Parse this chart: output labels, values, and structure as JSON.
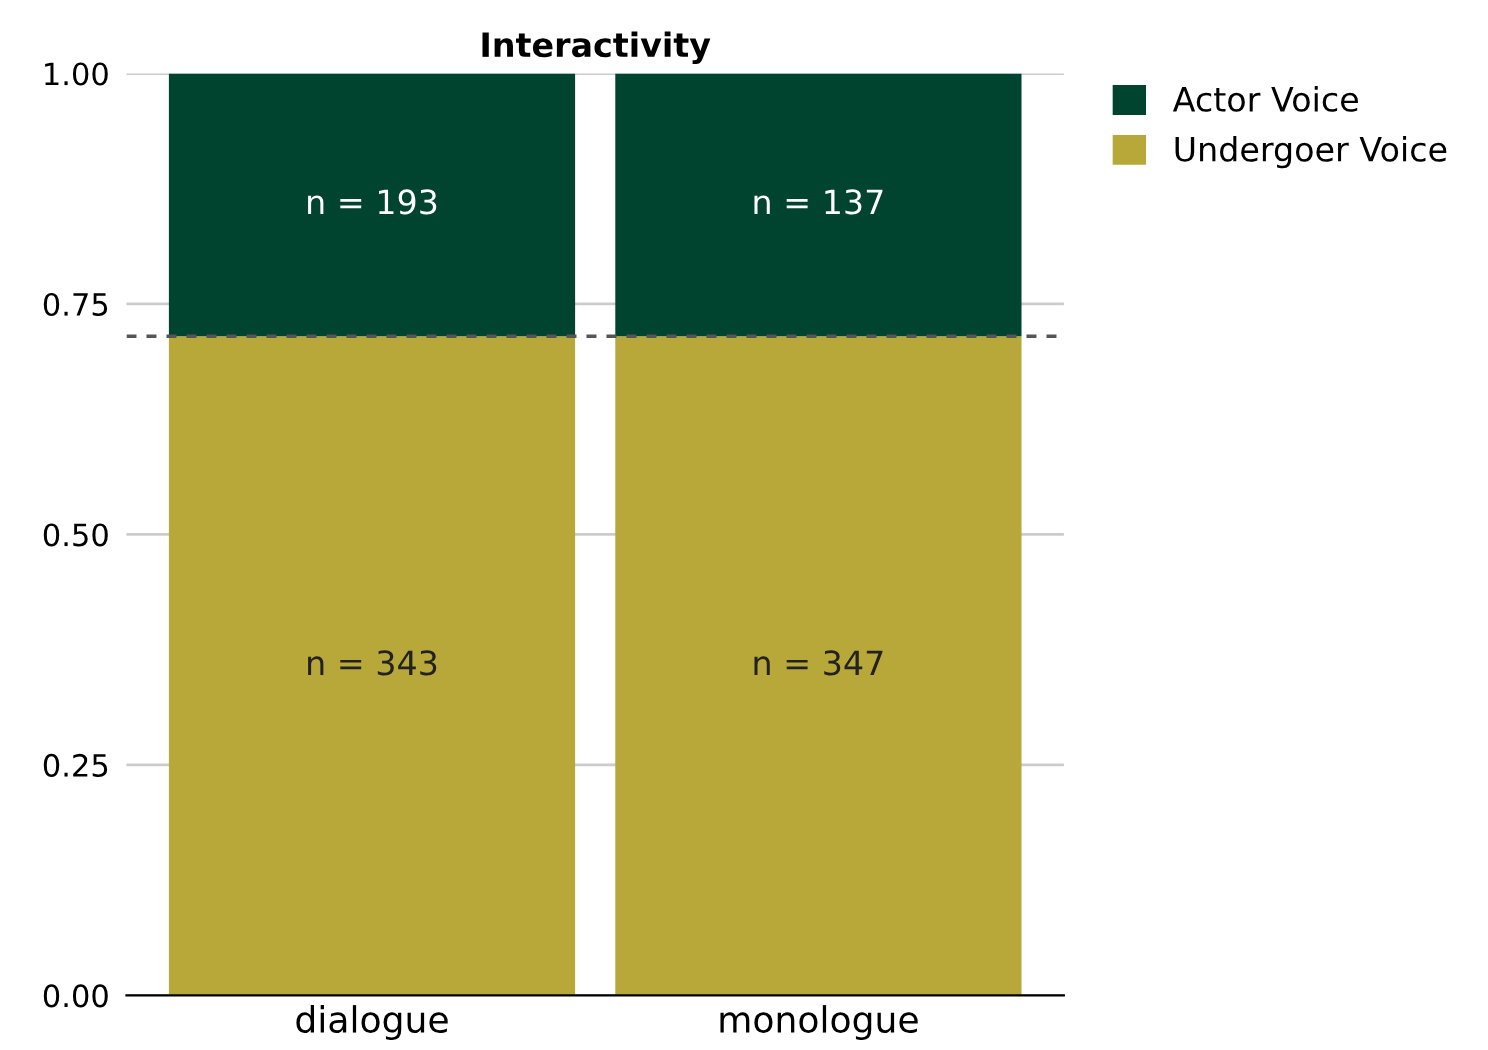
{
  "chart_data": {
    "type": "bar",
    "title": "Interactivity",
    "categories": [
      "dialogue",
      "monologue"
    ],
    "stacked": true,
    "series": [
      {
        "name": "Undergoer Voice",
        "color": "#b8a83a",
        "values": [
          0.715,
          0.715
        ]
      },
      {
        "name": "Actor Voice",
        "color": "#004430",
        "values": [
          0.285,
          0.285
        ]
      }
    ],
    "annotations": [
      "n = 343",
      "n = 347",
      "n = 193",
      "n = 137"
    ],
    "ylim": [
      0,
      1
    ],
    "yticks": [
      {
        "value": 0,
        "label": "0.00"
      },
      {
        "value": 0.25,
        "label": "0.25"
      },
      {
        "value": 0.5,
        "label": "0.50"
      },
      {
        "value": 0.75,
        "label": "0.75"
      },
      {
        "value": 1,
        "label": "1.00"
      }
    ],
    "grid": "y",
    "legend": "top right",
    "ref_lines": [
      {
        "axis": "y",
        "value": 0.715,
        "color": "#555555",
        "line_style": "dashed"
      }
    ]
  }
}
